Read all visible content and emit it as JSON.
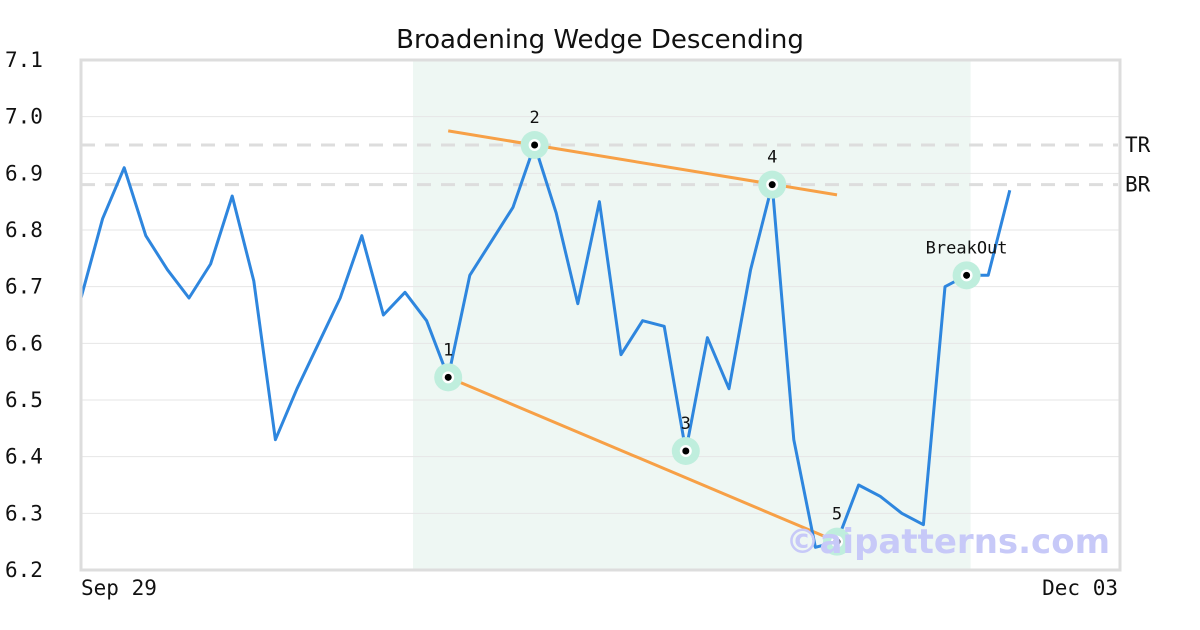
{
  "chart_data": {
    "type": "line",
    "title": "Broadening Wedge Descending",
    "ylim": [
      6.2,
      7.1
    ],
    "yticks": [
      "6.2",
      "6.3",
      "6.4",
      "6.5",
      "6.6",
      "6.7",
      "6.8",
      "6.9",
      "7.0",
      "7.1"
    ],
    "xtick_labels": [
      "Sep 29",
      "Dec 03"
    ],
    "grid": "horizontal",
    "series": [
      {
        "color": "#2e86de",
        "values": [
          6.68,
          6.82,
          6.91,
          6.79,
          6.73,
          6.68,
          6.74,
          6.86,
          6.71,
          6.43,
          6.52,
          6.6,
          6.68,
          6.79,
          6.65,
          6.69,
          6.64,
          6.54,
          6.72,
          6.78,
          6.84,
          6.95,
          6.83,
          6.67,
          6.85,
          6.58,
          6.64,
          6.63,
          6.41,
          6.61,
          6.52,
          6.73,
          6.88,
          6.43,
          6.24,
          6.25,
          6.35,
          6.33,
          6.3,
          6.28,
          6.7,
          6.72,
          6.72,
          6.87
        ]
      }
    ],
    "highlight_range": [
      15,
      41
    ],
    "highlight_color": "#eef7f3",
    "pattern_points": [
      {
        "label": "1",
        "x": 17,
        "y": 6.54
      },
      {
        "label": "2",
        "x": 21,
        "y": 6.95
      },
      {
        "label": "3",
        "x": 28,
        "y": 6.41
      },
      {
        "label": "4",
        "x": 32,
        "y": 6.88
      },
      {
        "label": "5",
        "x": 35,
        "y": 6.25
      },
      {
        "label": "BreakOut",
        "x": 41,
        "y": 6.72
      }
    ],
    "trendlines": [
      {
        "color": "#f7a046",
        "from": {
          "x": 17,
          "y": 6.975
        },
        "to": {
          "x": 35,
          "y": 6.862
        }
      },
      {
        "color": "#f7a046",
        "from": {
          "x": 17,
          "y": 6.54
        },
        "to": {
          "x": 35,
          "y": 6.25
        }
      }
    ],
    "reference_lines": [
      {
        "label": "TR",
        "y": 6.95
      },
      {
        "label": "BR",
        "y": 6.88
      }
    ],
    "marker_halo_color": "#bfeedd",
    "watermark": "©aipatterns.com"
  }
}
